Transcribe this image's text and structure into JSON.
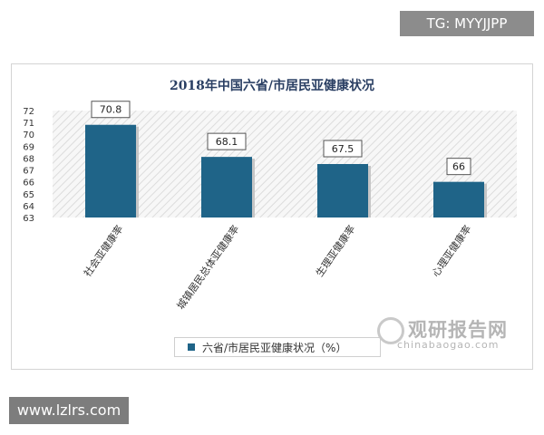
{
  "watermark_top": "TG: MYYJJPP",
  "watermark_bottom": "www.lzlrs.com",
  "brand": {
    "name": "观研报告网",
    "url": "chinabaogao.com"
  },
  "colors": {
    "bar": "#1f6488",
    "hatch": "#e2e2e2",
    "title": "#2a3f63"
  },
  "chart_data": {
    "type": "bar",
    "title": "2018年中国六省/市居民亚健康状况",
    "categories": [
      "社会亚健康率",
      "城镇居民总体亚健康率",
      "生理亚健康率",
      "心理亚健康率"
    ],
    "series": [
      {
        "name": "六省/市居民亚健康状况（%）",
        "values": [
          70.8,
          68.1,
          67.5,
          66
        ]
      }
    ],
    "data_labels": [
      "70.8",
      "68.1",
      "67.5",
      "66"
    ],
    "ylim": [
      63,
      72
    ],
    "yticks": [
      "63",
      "64",
      "65",
      "66",
      "67",
      "68",
      "69",
      "70",
      "71",
      "72"
    ],
    "xlabel": "",
    "ylabel": "",
    "legend": "bottom-center",
    "grid": false
  }
}
